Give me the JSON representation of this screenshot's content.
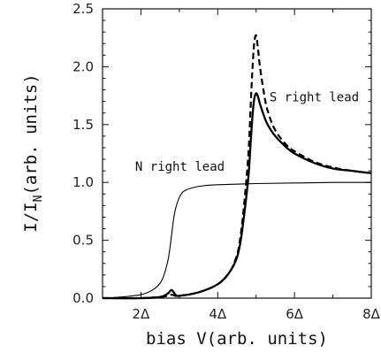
{
  "chart_data": {
    "type": "line",
    "xlabel": "bias V(arb. units)",
    "ylabel_main": "I/I",
    "ylabel_sub": "N",
    "ylabel_rest": "(arb. units)",
    "xlim": [
      1,
      8
    ],
    "ylim": [
      0,
      2.5
    ],
    "x_ticks": [
      {
        "value": 2,
        "label": "2Δ"
      },
      {
        "value": 4,
        "label": "4Δ"
      },
      {
        "value": 6,
        "label": "6Δ"
      },
      {
        "value": 8,
        "label": "8Δ"
      }
    ],
    "y_ticks": [
      {
        "value": 0,
        "label": "0.0"
      },
      {
        "value": 0.5,
        "label": "0.5"
      },
      {
        "value": 1.0,
        "label": "1.0"
      },
      {
        "value": 1.5,
        "label": "1.5"
      },
      {
        "value": 2.0,
        "label": "2.0"
      },
      {
        "value": 2.5,
        "label": "2.5"
      }
    ],
    "annotations": [
      {
        "text": "N right lead",
        "x": 1.85,
        "y": 1.1
      },
      {
        "text": "S right lead",
        "x": 5.35,
        "y": 1.7
      }
    ],
    "series": [
      {
        "style": "thin-solid",
        "x": [
          1.0,
          1.5,
          2.0,
          2.3,
          2.5,
          2.6,
          2.7,
          2.75,
          2.8,
          2.85,
          2.9,
          3.0,
          3.1,
          3.3,
          3.6,
          4.0,
          5.0,
          6.0,
          7.0,
          8.0
        ],
        "y": [
          0.0,
          0.01,
          0.03,
          0.07,
          0.13,
          0.2,
          0.32,
          0.42,
          0.55,
          0.68,
          0.77,
          0.87,
          0.92,
          0.95,
          0.97,
          0.98,
          0.99,
          0.995,
          1.0,
          1.0
        ]
      },
      {
        "style": "thick-solid",
        "x": [
          1.0,
          2.0,
          2.5,
          2.7,
          2.8,
          2.9,
          3.0,
          3.5,
          4.0,
          4.3,
          4.5,
          4.6,
          4.7,
          4.8,
          4.85,
          4.9,
          4.95,
          5.0,
          5.05,
          5.1,
          5.2,
          5.3,
          5.5,
          5.8,
          6.0,
          6.5,
          7.0,
          7.5,
          8.0
        ],
        "y": [
          0.0,
          0.0,
          0.01,
          0.04,
          0.07,
          0.03,
          0.02,
          0.05,
          0.12,
          0.22,
          0.35,
          0.5,
          0.75,
          1.05,
          1.3,
          1.55,
          1.72,
          1.77,
          1.74,
          1.68,
          1.58,
          1.5,
          1.4,
          1.3,
          1.25,
          1.17,
          1.12,
          1.1,
          1.08
        ]
      },
      {
        "style": "dashed",
        "x": [
          1.0,
          2.0,
          2.5,
          2.7,
          2.8,
          2.9,
          3.0,
          3.5,
          4.0,
          4.3,
          4.5,
          4.6,
          4.7,
          4.8,
          4.85,
          4.9,
          4.95,
          5.0,
          5.05,
          5.1,
          5.2,
          5.3,
          5.5,
          5.8,
          6.0,
          6.5,
          7.0,
          7.5,
          8.0
        ],
        "y": [
          0.0,
          0.0,
          0.01,
          0.02,
          0.03,
          0.02,
          0.02,
          0.05,
          0.12,
          0.22,
          0.37,
          0.55,
          0.85,
          1.25,
          1.6,
          1.95,
          2.2,
          2.27,
          2.15,
          2.0,
          1.78,
          1.62,
          1.45,
          1.32,
          1.27,
          1.18,
          1.13,
          1.1,
          1.08
        ]
      }
    ]
  }
}
